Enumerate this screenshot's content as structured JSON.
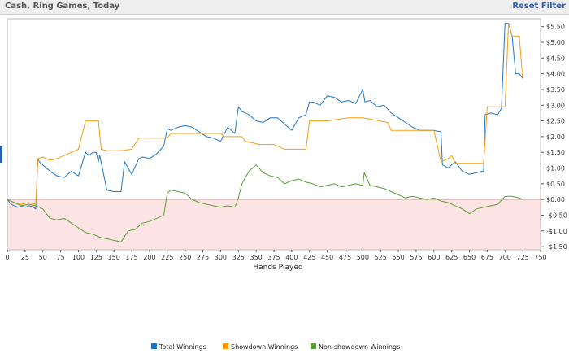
{
  "header": {
    "title": "Cash, Ring Games, Today",
    "reset_label": "Reset Filter"
  },
  "colors": {
    "total": "#1f77c4",
    "showdown": "#f39c12",
    "nonshowdown": "#5a9e3a",
    "negative_band": "#fde4e4",
    "zero_line": "#e0a0a0",
    "accent": "#2b5fb4"
  },
  "chart_data": {
    "type": "line",
    "xlabel": "Hands Played",
    "ylabel": "",
    "xlim": [
      0,
      750
    ],
    "ylim": [
      -1.6,
      5.75
    ],
    "x_ticks": [
      0,
      25,
      50,
      75,
      100,
      125,
      150,
      175,
      200,
      225,
      250,
      275,
      300,
      325,
      350,
      375,
      400,
      425,
      450,
      475,
      500,
      525,
      550,
      575,
      600,
      625,
      650,
      675,
      700,
      725,
      750
    ],
    "y_ticks": [
      {
        "v": 5.5,
        "label": "$5.50"
      },
      {
        "v": 5.0,
        "label": "$5.00"
      },
      {
        "v": 4.5,
        "label": "$4.50"
      },
      {
        "v": 4.0,
        "label": "$4.00"
      },
      {
        "v": 3.5,
        "label": "$3.50"
      },
      {
        "v": 3.0,
        "label": "$3.00"
      },
      {
        "v": 2.5,
        "label": "$2.50"
      },
      {
        "v": 2.0,
        "label": "$2.00"
      },
      {
        "v": 1.5,
        "label": "$1.50"
      },
      {
        "v": 1.0,
        "label": "$1.00"
      },
      {
        "v": 0.5,
        "label": "$0.50"
      },
      {
        "v": 0.0,
        "label": "$0.00"
      },
      {
        "v": -0.5,
        "label": "-$0.50"
      },
      {
        "v": -1.0,
        "label": "-$1.00"
      },
      {
        "v": -1.5,
        "label": "-$1.50"
      }
    ],
    "series": [
      {
        "name": "Total Winnings",
        "color": "#1f77c4",
        "x": [
          0,
          5,
          10,
          15,
          20,
          25,
          30,
          35,
          40,
          43,
          45,
          50,
          55,
          60,
          70,
          80,
          90,
          100,
          110,
          115,
          120,
          125,
          128,
          130,
          140,
          150,
          160,
          165,
          175,
          185,
          190,
          200,
          210,
          220,
          225,
          230,
          240,
          250,
          260,
          270,
          280,
          290,
          300,
          310,
          320,
          325,
          330,
          340,
          350,
          360,
          370,
          380,
          390,
          400,
          410,
          420,
          425,
          430,
          440,
          450,
          460,
          470,
          480,
          490,
          500,
          503,
          510,
          520,
          530,
          540,
          550,
          560,
          570,
          580,
          590,
          600,
          610,
          612,
          620,
          630,
          640,
          650,
          660,
          665,
          670,
          672,
          680,
          690,
          695,
          700,
          705,
          710,
          715,
          720,
          725
        ],
        "y": [
          0,
          -0.15,
          -0.2,
          -0.25,
          -0.2,
          -0.25,
          -0.2,
          -0.22,
          -0.3,
          1.3,
          1.2,
          1.1,
          1.0,
          0.9,
          0.75,
          0.7,
          0.9,
          0.75,
          1.5,
          1.4,
          1.5,
          1.5,
          1.2,
          1.4,
          0.3,
          0.25,
          0.25,
          1.2,
          0.8,
          1.3,
          1.35,
          1.3,
          1.45,
          1.7,
          2.25,
          2.2,
          2.3,
          2.35,
          2.3,
          2.15,
          2.0,
          1.95,
          1.85,
          2.3,
          2.1,
          2.95,
          2.8,
          2.7,
          2.5,
          2.45,
          2.6,
          2.6,
          2.4,
          2.2,
          2.6,
          2.7,
          3.1,
          3.1,
          3.0,
          3.3,
          3.25,
          3.1,
          3.15,
          3.05,
          3.5,
          3.1,
          3.15,
          2.95,
          3.0,
          2.75,
          2.6,
          2.45,
          2.3,
          2.2,
          2.2,
          2.2,
          2.15,
          1.1,
          1.0,
          1.2,
          0.9,
          0.8,
          0.85,
          0.88,
          0.9,
          2.7,
          2.75,
          2.7,
          2.9,
          5.6,
          5.6,
          5.2,
          4.0,
          4.0,
          3.85
        ]
      },
      {
        "name": "Showdown Winnings",
        "color": "#f39c12",
        "x": [
          0,
          10,
          20,
          30,
          40,
          43,
          50,
          60,
          70,
          80,
          90,
          100,
          110,
          128,
          132,
          140,
          150,
          160,
          175,
          185,
          225,
          230,
          260,
          270,
          300,
          305,
          330,
          335,
          355,
          375,
          390,
          420,
          425,
          450,
          480,
          500,
          535,
          540,
          560,
          600,
          610,
          620,
          625,
          630,
          650,
          655,
          660,
          670,
          675,
          680,
          690,
          700,
          705,
          710,
          720,
          725
        ],
        "y": [
          0,
          -0.1,
          -0.15,
          -0.1,
          -0.15,
          1.3,
          1.35,
          1.25,
          1.3,
          1.4,
          1.5,
          1.6,
          2.5,
          2.5,
          1.6,
          1.55,
          1.55,
          1.55,
          1.6,
          1.95,
          1.95,
          2.1,
          2.1,
          2.1,
          2.1,
          2.0,
          2.0,
          1.85,
          1.75,
          1.75,
          1.6,
          1.6,
          2.5,
          2.5,
          2.6,
          2.6,
          2.45,
          2.2,
          2.2,
          2.2,
          1.2,
          1.3,
          1.4,
          1.15,
          1.15,
          1.15,
          1.15,
          1.15,
          2.95,
          2.95,
          2.95,
          2.95,
          5.6,
          5.2,
          5.2,
          3.85
        ]
      },
      {
        "name": "Non-showdown Winnings",
        "color": "#5a9e3a",
        "x": [
          0,
          10,
          20,
          30,
          40,
          50,
          60,
          70,
          80,
          90,
          100,
          110,
          120,
          130,
          140,
          150,
          160,
          170,
          180,
          190,
          200,
          210,
          220,
          225,
          230,
          240,
          250,
          260,
          270,
          280,
          290,
          300,
          310,
          320,
          325,
          330,
          340,
          350,
          360,
          370,
          380,
          390,
          400,
          410,
          420,
          430,
          440,
          450,
          460,
          470,
          480,
          490,
          500,
          502,
          510,
          520,
          530,
          540,
          550,
          560,
          570,
          580,
          590,
          600,
          610,
          620,
          630,
          640,
          650,
          660,
          670,
          680,
          690,
          700,
          710,
          720,
          725
        ],
        "y": [
          0,
          -0.1,
          -0.2,
          -0.15,
          -0.2,
          -0.3,
          -0.6,
          -0.65,
          -0.6,
          -0.75,
          -0.9,
          -1.05,
          -1.1,
          -1.2,
          -1.25,
          -1.3,
          -1.35,
          -1.0,
          -0.95,
          -0.75,
          -0.7,
          -0.6,
          -0.5,
          0.2,
          0.3,
          0.25,
          0.2,
          0.0,
          -0.1,
          -0.15,
          -0.2,
          -0.25,
          -0.2,
          -0.25,
          0.05,
          0.5,
          0.9,
          1.1,
          0.85,
          0.75,
          0.7,
          0.5,
          0.6,
          0.65,
          0.55,
          0.5,
          0.4,
          0.45,
          0.5,
          0.4,
          0.45,
          0.5,
          0.45,
          0.85,
          0.45,
          0.4,
          0.35,
          0.25,
          0.15,
          0.05,
          0.1,
          0.05,
          0.0,
          0.05,
          -0.05,
          -0.1,
          -0.2,
          -0.3,
          -0.45,
          -0.3,
          -0.25,
          -0.2,
          -0.15,
          0.1,
          0.1,
          0.05,
          0.0
        ]
      }
    ],
    "legend_position": "bottom-center",
    "grid": false,
    "negative_region_shaded": true
  }
}
